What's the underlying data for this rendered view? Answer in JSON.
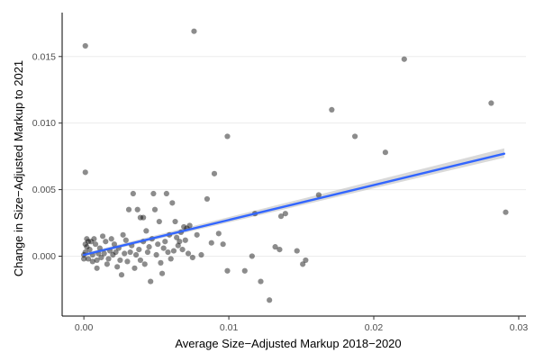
{
  "chart_data": {
    "type": "scatter",
    "xlabel": "Average Size−Adjusted Markup 2018−2020",
    "ylabel": "Change in Size−Adjusted Markup to 2021",
    "xlim": [
      -0.0015,
      0.0305
    ],
    "ylim": [
      -0.0045,
      0.0183
    ],
    "x_ticks": [
      0.0,
      0.01,
      0.02,
      0.03
    ],
    "x_tick_labels": [
      "0.00",
      "0.01",
      "0.02",
      "0.03"
    ],
    "y_ticks": [
      0.0,
      0.005,
      0.01,
      0.015
    ],
    "y_tick_labels": [
      "0.000",
      "0.005",
      "0.010",
      "0.015"
    ],
    "grid": true,
    "colors": {
      "points": "#000000",
      "fit_line": "#3366ff",
      "confidence_band": "#bfbfbf",
      "gridline": "#ebebeb"
    },
    "fit_line": {
      "x": [
        0.0,
        0.029
      ],
      "y": [
        0.0001,
        0.0077
      ]
    },
    "confidence_band": {
      "x": [
        0.0,
        0.029
      ],
      "lower": [
        -2e-05,
        0.0074
      ],
      "upper": [
        0.00022,
        0.0081
      ]
    },
    "points": [
      {
        "x": 0.0001,
        "y": 0.0158
      },
      {
        "x": 0.0076,
        "y": 0.0169
      },
      {
        "x": 0.0221,
        "y": 0.0148
      },
      {
        "x": 0.0171,
        "y": 0.011
      },
      {
        "x": 0.0281,
        "y": 0.0115
      },
      {
        "x": 0.0187,
        "y": 0.009
      },
      {
        "x": 0.0099,
        "y": 0.009
      },
      {
        "x": 0.0208,
        "y": 0.0078
      },
      {
        "x": 0.0001,
        "y": 0.0063
      },
      {
        "x": 0.009,
        "y": 0.0062
      },
      {
        "x": 0.0162,
        "y": 0.0046
      },
      {
        "x": 0.0291,
        "y": 0.0033
      },
      {
        "x": 0.0099,
        "y": -0.0011
      },
      {
        "x": 0.0111,
        "y": -0.0011
      },
      {
        "x": 0.0116,
        "y": 0.0
      },
      {
        "x": 0.0122,
        "y": -0.0019
      },
      {
        "x": 0.0118,
        "y": 0.0032
      },
      {
        "x": 0.0128,
        "y": -0.0033
      },
      {
        "x": 0.0132,
        "y": 0.0007
      },
      {
        "x": 0.0135,
        "y": 0.0005
      },
      {
        "x": 0.0147,
        "y": 0.0004
      },
      {
        "x": 0.0151,
        "y": -0.0006
      },
      {
        "x": 0.0153,
        "y": -0.0003
      },
      {
        "x": 0.0136,
        "y": 0.003
      },
      {
        "x": 0.0139,
        "y": 0.0032
      },
      {
        "x": 0.0085,
        "y": 0.0043
      },
      {
        "x": 0.0093,
        "y": 0.0017
      },
      {
        "x": 0.0096,
        "y": 0.0009
      },
      {
        "x": 0.0088,
        "y": 0.001
      },
      {
        "x": 0.0081,
        "y": 0.0001
      },
      {
        "x": 0.0072,
        "y": 0.0002
      },
      {
        "x": 0.0075,
        "y": -0.0001
      },
      {
        "x": 0.0071,
        "y": 0.0021
      },
      {
        "x": 0.0069,
        "y": 0.0022
      },
      {
        "x": 0.0073,
        "y": 0.0023
      },
      {
        "x": 0.0061,
        "y": 0.004
      },
      {
        "x": 0.0057,
        "y": 0.0047
      },
      {
        "x": 0.0048,
        "y": 0.0047
      },
      {
        "x": 0.0034,
        "y": 0.0047
      },
      {
        "x": 0.0031,
        "y": 0.0035
      },
      {
        "x": 0.0037,
        "y": 0.0035
      },
      {
        "x": 0.0039,
        "y": 0.0029
      },
      {
        "x": 0.0041,
        "y": 0.0029
      },
      {
        "x": 0.0052,
        "y": 0.0026
      },
      {
        "x": 0.0049,
        "y": 0.0035
      },
      {
        "x": 0.0063,
        "y": 0.0026
      },
      {
        "x": 0.0059,
        "y": 0.0016
      },
      {
        "x": 0.0066,
        "y": 0.0011
      },
      {
        "x": 0.0054,
        "y": -0.0013
      },
      {
        "x": 0.0046,
        "y": -0.0019
      },
      {
        "x": 0.0026,
        "y": -0.0014
      },
      {
        "x": 0.0023,
        "y": -0.0008
      },
      {
        "x": 0.0016,
        "y": -0.0006
      },
      {
        "x": 0.0009,
        "y": -0.0009
      },
      {
        "x": 0.0006,
        "y": -0.0004
      },
      {
        "x": 0.0035,
        "y": -0.0009
      },
      {
        "x": 0.0041,
        "y": 0.0011
      },
      {
        "x": 0.0043,
        "y": 0.0019
      },
      {
        "x": 0.0047,
        "y": 0.0013
      },
      {
        "x": 0.0051,
        "y": 0.0009
      },
      {
        "x": 0.0055,
        "y": 0.0006
      },
      {
        "x": 0.0058,
        "y": 0.0003
      },
      {
        "x": 0.0062,
        "y": 0.0004
      },
      {
        "x": 0.0064,
        "y": 0.0014
      },
      {
        "x": 0.0067,
        "y": 0.0018
      },
      {
        "x": 0.0068,
        "y": 0.0005
      },
      {
        "x": 0.0044,
        "y": 0.0003
      },
      {
        "x": 0.0038,
        "y": 0.0005
      },
      {
        "x": 0.0033,
        "y": 0.0008
      },
      {
        "x": 0.0029,
        "y": 0.0012
      },
      {
        "x": 0.0027,
        "y": 0.0016
      },
      {
        "x": 0.0024,
        "y": 0.0006
      },
      {
        "x": 0.0021,
        "y": 0.0009
      },
      {
        "x": 0.0019,
        "y": 0.0013
      },
      {
        "x": 0.0018,
        "y": 0.0004
      },
      {
        "x": 0.0015,
        "y": 0.0011
      },
      {
        "x": 0.0013,
        "y": 0.0015
      },
      {
        "x": 0.0011,
        "y": 0.0006
      },
      {
        "x": 0.001,
        "y": 0.0002
      },
      {
        "x": 0.0008,
        "y": 0.0009
      },
      {
        "x": 0.0007,
        "y": 0.0013
      },
      {
        "x": 0.0005,
        "y": 0.0011
      },
      {
        "x": 0.0004,
        "y": 0.0005
      },
      {
        "x": 0.0003,
        "y": -0.0002
      },
      {
        "x": 0.0002,
        "y": 0.0007
      },
      {
        "x": 0.0002,
        "y": 0.0013
      },
      {
        "x": 0.0001,
        "y": 0.0003
      },
      {
        "x": 0.0,
        "y": 0.0001
      },
      {
        "x": 0.0,
        "y": -0.0002
      },
      {
        "x": 0.0001,
        "y": 0.0009
      },
      {
        "x": 0.0003,
        "y": 0.0011
      },
      {
        "x": 0.0006,
        "y": 0.0001
      },
      {
        "x": 0.0009,
        "y": -0.0003
      },
      {
        "x": 0.0012,
        "y": -0.0001
      },
      {
        "x": 0.0014,
        "y": 0.0002
      },
      {
        "x": 0.0017,
        "y": -0.0002
      },
      {
        "x": 0.002,
        "y": 0.0001
      },
      {
        "x": 0.0022,
        "y": 0.0003
      },
      {
        "x": 0.0025,
        "y": -0.0003
      },
      {
        "x": 0.0028,
        "y": 0.0002
      },
      {
        "x": 0.003,
        "y": -0.0004
      },
      {
        "x": 0.0032,
        "y": 0.0003
      },
      {
        "x": 0.0036,
        "y": 0.0001
      },
      {
        "x": 0.0039,
        "y": -0.0003
      },
      {
        "x": 0.0042,
        "y": -0.0006
      },
      {
        "x": 0.0045,
        "y": 0.0007
      },
      {
        "x": 0.005,
        "y": 0.0001
      },
      {
        "x": 0.0053,
        "y": -0.0005
      },
      {
        "x": 0.0056,
        "y": 0.0011
      },
      {
        "x": 0.006,
        "y": -0.0002
      },
      {
        "x": 0.0065,
        "y": 0.0008
      },
      {
        "x": 0.007,
        "y": 0.0012
      },
      {
        "x": 0.0078,
        "y": 0.0016
      }
    ]
  }
}
